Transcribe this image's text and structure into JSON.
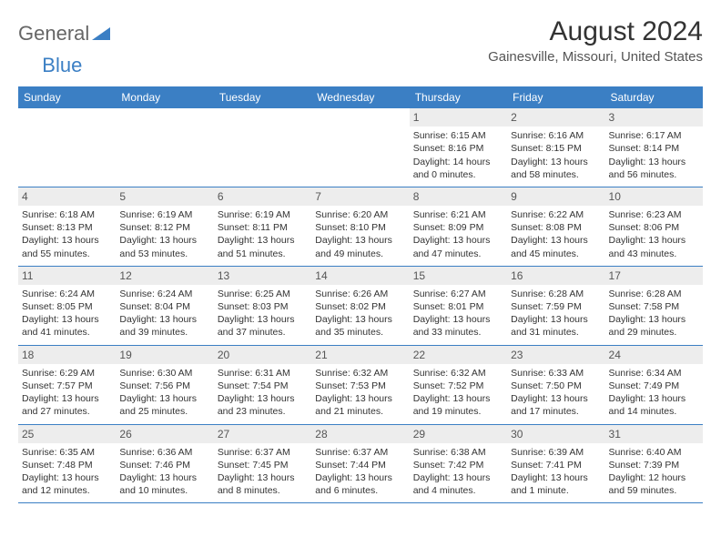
{
  "logo": {
    "text1": "General",
    "text2": "Blue"
  },
  "title": "August 2024",
  "location": "Gainesville, Missouri, United States",
  "colors": {
    "header_bg": "#3b7fc4",
    "header_text": "#ffffff",
    "daynum_bg": "#ededed",
    "row_border": "#3b7fc4",
    "body_text": "#333333"
  },
  "day_labels": [
    "Sunday",
    "Monday",
    "Tuesday",
    "Wednesday",
    "Thursday",
    "Friday",
    "Saturday"
  ],
  "weeks": [
    [
      null,
      null,
      null,
      null,
      {
        "n": "1",
        "sr": "6:15 AM",
        "ss": "8:16 PM",
        "dl": "14 hours and 0 minutes."
      },
      {
        "n": "2",
        "sr": "6:16 AM",
        "ss": "8:15 PM",
        "dl": "13 hours and 58 minutes."
      },
      {
        "n": "3",
        "sr": "6:17 AM",
        "ss": "8:14 PM",
        "dl": "13 hours and 56 minutes."
      }
    ],
    [
      {
        "n": "4",
        "sr": "6:18 AM",
        "ss": "8:13 PM",
        "dl": "13 hours and 55 minutes."
      },
      {
        "n": "5",
        "sr": "6:19 AM",
        "ss": "8:12 PM",
        "dl": "13 hours and 53 minutes."
      },
      {
        "n": "6",
        "sr": "6:19 AM",
        "ss": "8:11 PM",
        "dl": "13 hours and 51 minutes."
      },
      {
        "n": "7",
        "sr": "6:20 AM",
        "ss": "8:10 PM",
        "dl": "13 hours and 49 minutes."
      },
      {
        "n": "8",
        "sr": "6:21 AM",
        "ss": "8:09 PM",
        "dl": "13 hours and 47 minutes."
      },
      {
        "n": "9",
        "sr": "6:22 AM",
        "ss": "8:08 PM",
        "dl": "13 hours and 45 minutes."
      },
      {
        "n": "10",
        "sr": "6:23 AM",
        "ss": "8:06 PM",
        "dl": "13 hours and 43 minutes."
      }
    ],
    [
      {
        "n": "11",
        "sr": "6:24 AM",
        "ss": "8:05 PM",
        "dl": "13 hours and 41 minutes."
      },
      {
        "n": "12",
        "sr": "6:24 AM",
        "ss": "8:04 PM",
        "dl": "13 hours and 39 minutes."
      },
      {
        "n": "13",
        "sr": "6:25 AM",
        "ss": "8:03 PM",
        "dl": "13 hours and 37 minutes."
      },
      {
        "n": "14",
        "sr": "6:26 AM",
        "ss": "8:02 PM",
        "dl": "13 hours and 35 minutes."
      },
      {
        "n": "15",
        "sr": "6:27 AM",
        "ss": "8:01 PM",
        "dl": "13 hours and 33 minutes."
      },
      {
        "n": "16",
        "sr": "6:28 AM",
        "ss": "7:59 PM",
        "dl": "13 hours and 31 minutes."
      },
      {
        "n": "17",
        "sr": "6:28 AM",
        "ss": "7:58 PM",
        "dl": "13 hours and 29 minutes."
      }
    ],
    [
      {
        "n": "18",
        "sr": "6:29 AM",
        "ss": "7:57 PM",
        "dl": "13 hours and 27 minutes."
      },
      {
        "n": "19",
        "sr": "6:30 AM",
        "ss": "7:56 PM",
        "dl": "13 hours and 25 minutes."
      },
      {
        "n": "20",
        "sr": "6:31 AM",
        "ss": "7:54 PM",
        "dl": "13 hours and 23 minutes."
      },
      {
        "n": "21",
        "sr": "6:32 AM",
        "ss": "7:53 PM",
        "dl": "13 hours and 21 minutes."
      },
      {
        "n": "22",
        "sr": "6:32 AM",
        "ss": "7:52 PM",
        "dl": "13 hours and 19 minutes."
      },
      {
        "n": "23",
        "sr": "6:33 AM",
        "ss": "7:50 PM",
        "dl": "13 hours and 17 minutes."
      },
      {
        "n": "24",
        "sr": "6:34 AM",
        "ss": "7:49 PM",
        "dl": "13 hours and 14 minutes."
      }
    ],
    [
      {
        "n": "25",
        "sr": "6:35 AM",
        "ss": "7:48 PM",
        "dl": "13 hours and 12 minutes."
      },
      {
        "n": "26",
        "sr": "6:36 AM",
        "ss": "7:46 PM",
        "dl": "13 hours and 10 minutes."
      },
      {
        "n": "27",
        "sr": "6:37 AM",
        "ss": "7:45 PM",
        "dl": "13 hours and 8 minutes."
      },
      {
        "n": "28",
        "sr": "6:37 AM",
        "ss": "7:44 PM",
        "dl": "13 hours and 6 minutes."
      },
      {
        "n": "29",
        "sr": "6:38 AM",
        "ss": "7:42 PM",
        "dl": "13 hours and 4 minutes."
      },
      {
        "n": "30",
        "sr": "6:39 AM",
        "ss": "7:41 PM",
        "dl": "13 hours and 1 minute."
      },
      {
        "n": "31",
        "sr": "6:40 AM",
        "ss": "7:39 PM",
        "dl": "12 hours and 59 minutes."
      }
    ]
  ],
  "labels": {
    "sunrise": "Sunrise:",
    "sunset": "Sunset:",
    "daylight": "Daylight:"
  }
}
